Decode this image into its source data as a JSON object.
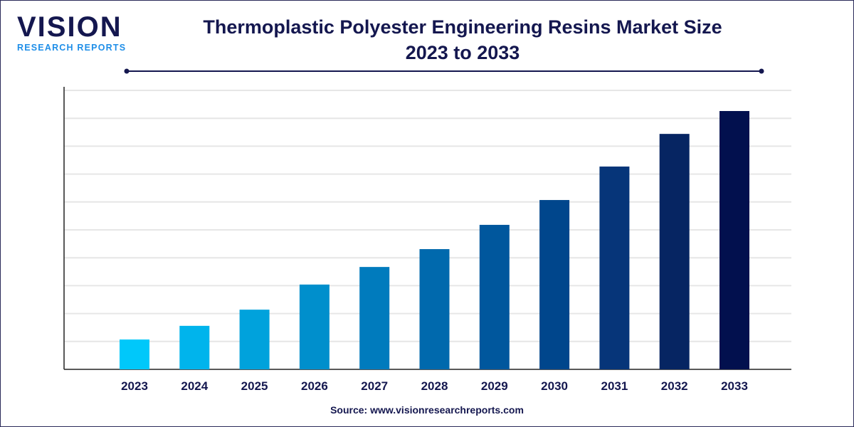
{
  "logo": {
    "main": "VISION",
    "sub": "RESEARCH REPORTS"
  },
  "source": "Source: www.visionresearchreports.com",
  "chart_data": {
    "type": "bar",
    "title": "Thermoplastic Polyester Engineering Resins Market Size",
    "subtitle": "2023 to 2033",
    "categories": [
      "2023",
      "2024",
      "2025",
      "2026",
      "2027",
      "2028",
      "2029",
      "2030",
      "2031",
      "2032",
      "2033"
    ],
    "values": [
      1.07,
      1.56,
      2.14,
      3.04,
      3.67,
      4.31,
      5.18,
      6.07,
      7.27,
      8.44,
      9.26
    ],
    "ylim": [
      0,
      10
    ],
    "grid": true,
    "colors": [
      "#00c8fa",
      "#00b4ec",
      "#00a2dc",
      "#008fcc",
      "#007bbd",
      "#0069ad",
      "#00579d",
      "#00468c",
      "#063579",
      "#062562",
      "#02104e"
    ],
    "xlabel": "",
    "ylabel": ""
  }
}
